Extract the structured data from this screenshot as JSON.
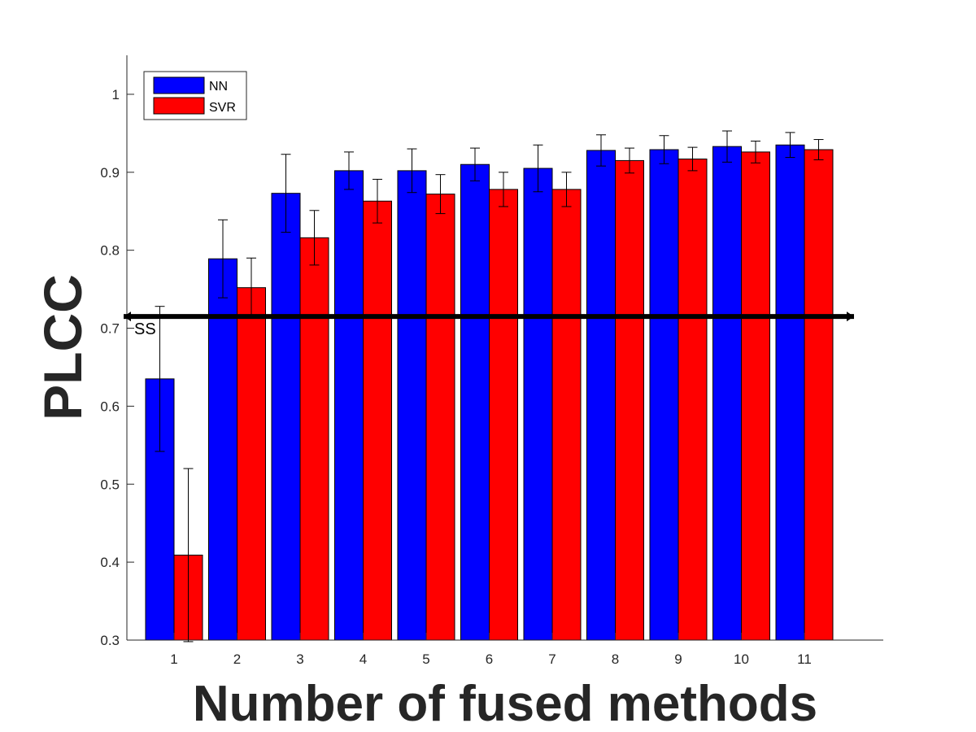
{
  "chart_data": {
    "type": "bar",
    "title": "",
    "xlabel": "Number of fused methods",
    "ylabel": "PLCC",
    "categories": [
      "1",
      "2",
      "3",
      "4",
      "5",
      "6",
      "7",
      "8",
      "9",
      "10",
      "11"
    ],
    "ylim": [
      0.3,
      1.05
    ],
    "yticks": [
      0.3,
      0.4,
      0.5,
      0.6,
      0.7,
      0.8,
      0.9,
      1
    ],
    "ytick_labels": [
      "0.3",
      "0.4",
      "0.5",
      "0.6",
      "0.7",
      "0.8",
      "0.9",
      "1"
    ],
    "grid": false,
    "legend_position": "top-left",
    "series": [
      {
        "name": "NN",
        "color": "#0000ff",
        "values": [
          0.635,
          0.789,
          0.873,
          0.902,
          0.902,
          0.91,
          0.905,
          0.928,
          0.929,
          0.933,
          0.935
        ],
        "error": [
          0.093,
          0.05,
          0.05,
          0.024,
          0.028,
          0.021,
          0.03,
          0.02,
          0.018,
          0.02,
          0.016
        ]
      },
      {
        "name": "SVR",
        "color": "#ff0000",
        "values": [
          0.409,
          0.752,
          0.816,
          0.863,
          0.872,
          0.878,
          0.878,
          0.915,
          0.917,
          0.926,
          0.929
        ],
        "error": [
          0.111,
          0.038,
          0.035,
          0.028,
          0.025,
          0.022,
          0.022,
          0.016,
          0.015,
          0.014,
          0.013
        ]
      }
    ],
    "reference_line": {
      "label": "SS",
      "value": 0.715,
      "color": "#000000"
    }
  }
}
